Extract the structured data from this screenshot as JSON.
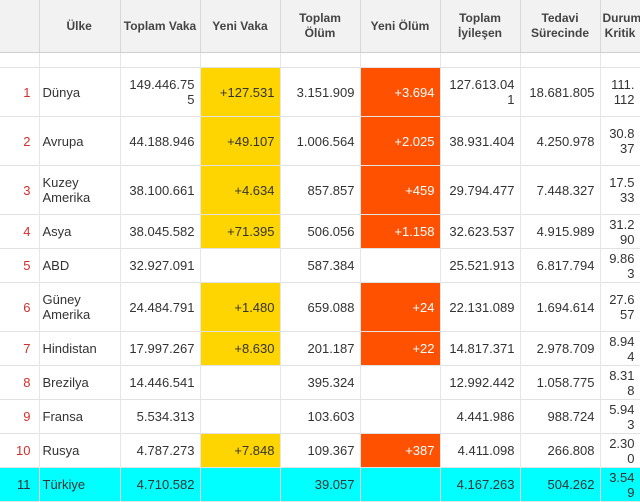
{
  "table": {
    "headers": [
      {
        "id": "rank",
        "label": ""
      },
      {
        "id": "country",
        "label": "Ülke"
      },
      {
        "id": "total-cases",
        "label": "Toplam Vaka"
      },
      {
        "id": "new-cases",
        "label": "Yeni Vaka"
      },
      {
        "id": "total-deaths",
        "label": "Toplam Ölüm"
      },
      {
        "id": "new-deaths",
        "label": "Yeni Ölüm"
      },
      {
        "id": "total-recovered",
        "label": "Toplam İyileşen"
      },
      {
        "id": "active",
        "label": "Tedavi Sürecinde"
      },
      {
        "id": "critical",
        "label": "Durumu Kritik"
      }
    ],
    "rows": [
      {
        "rank": "1",
        "country": "Dünya",
        "total_cases": "149.446.755",
        "new_cases": "+127.531",
        "total_deaths": "3.151.909",
        "new_deaths": "+3.694",
        "total_recovered": "127.613.041",
        "active": "18.681.805",
        "critical": "111.112"
      },
      {
        "rank": "2",
        "country": "Avrupa",
        "total_cases": "44.188.946",
        "new_cases": "+49.107",
        "total_deaths": "1.006.564",
        "new_deaths": "+2.025",
        "total_recovered": "38.931.404",
        "active": "4.250.978",
        "critical": "30.837"
      },
      {
        "rank": "3",
        "country": "Kuzey Amerika",
        "total_cases": "38.100.661",
        "new_cases": "+4.634",
        "total_deaths": "857.857",
        "new_deaths": "+459",
        "total_recovered": "29.794.477",
        "active": "7.448.327",
        "critical": "17.533"
      },
      {
        "rank": "4",
        "country": "Asya",
        "total_cases": "38.045.582",
        "new_cases": "+71.395",
        "total_deaths": "506.056",
        "new_deaths": "+1.158",
        "total_recovered": "32.623.537",
        "active": "4.915.989",
        "critical": "31.290"
      },
      {
        "rank": "5",
        "country": "ABD",
        "total_cases": "32.927.091",
        "new_cases": "",
        "total_deaths": "587.384",
        "new_deaths": "",
        "total_recovered": "25.521.913",
        "active": "6.817.794",
        "critical": "9.863"
      },
      {
        "rank": "6",
        "country": "Güney Amerika",
        "total_cases": "24.484.791",
        "new_cases": "+1.480",
        "total_deaths": "659.088",
        "new_deaths": "+24",
        "total_recovered": "22.131.089",
        "active": "1.694.614",
        "critical": "27.657"
      },
      {
        "rank": "7",
        "country": "Hindistan",
        "total_cases": "17.997.267",
        "new_cases": "+8.630",
        "total_deaths": "201.187",
        "new_deaths": "+22",
        "total_recovered": "14.817.371",
        "active": "2.978.709",
        "critical": "8.944"
      },
      {
        "rank": "8",
        "country": "Brezilya",
        "total_cases": "14.446.541",
        "new_cases": "",
        "total_deaths": "395.324",
        "new_deaths": "",
        "total_recovered": "12.992.442",
        "active": "1.058.775",
        "critical": "8.318"
      },
      {
        "rank": "9",
        "country": "Fransa",
        "total_cases": "5.534.313",
        "new_cases": "",
        "total_deaths": "103.603",
        "new_deaths": "",
        "total_recovered": "4.441.986",
        "active": "988.724",
        "critical": "5.943"
      },
      {
        "rank": "10",
        "country": "Rusya",
        "total_cases": "4.787.273",
        "new_cases": "+7.848",
        "total_deaths": "109.367",
        "new_deaths": "+387",
        "total_recovered": "4.411.098",
        "active": "266.808",
        "critical": "2.300"
      },
      {
        "rank": "11",
        "country": "Türkiye",
        "total_cases": "4.710.582",
        "new_cases": "",
        "total_deaths": "39.057",
        "new_deaths": "",
        "total_recovered": "4.167.263",
        "active": "504.262",
        "critical": "3.549"
      }
    ],
    "highlight_row": "11"
  },
  "colors": {
    "new_cases_bg": "#ffd500",
    "new_deaths_bg": "#ff5100",
    "highlight_row_bg": "#00ffff",
    "rank_text": "#d32f2f",
    "header_bg": "#f2f2f2"
  }
}
